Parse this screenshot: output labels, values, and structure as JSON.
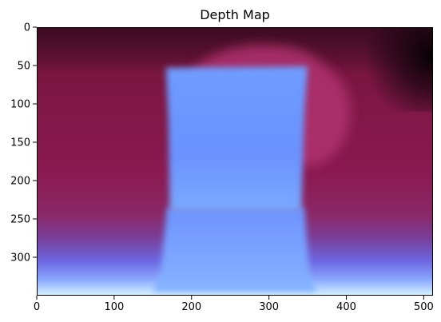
{
  "chart_data": {
    "type": "heatmap",
    "title": "Depth Map",
    "xlabel": "",
    "ylabel": "",
    "xlim": [
      0,
      512
    ],
    "ylim": [
      350,
      0
    ],
    "x_ticks": [
      0,
      100,
      200,
      300,
      400,
      500
    ],
    "y_ticks": [
      0,
      50,
      100,
      150,
      200,
      250,
      300
    ],
    "grid": false,
    "colormap": {
      "far": "#1a0d1a",
      "mid_far": "#7a1848",
      "mid": "#9a2a6a",
      "near": "#7aa6ff",
      "nearest": "#d6f4ff"
    },
    "image_regions": [
      {
        "label": "foreground object (top section)",
        "x": [
          168,
          345
        ],
        "y": [
          50,
          240
        ]
      },
      {
        "label": "foreground object (bottom section)",
        "x": [
          160,
          350
        ],
        "y": [
          240,
          340
        ]
      },
      {
        "label": "rounded shape behind object",
        "x": [
          230,
          420
        ],
        "y": [
          22,
          180
        ]
      },
      {
        "label": "far region",
        "x": [
          420,
          512
        ],
        "y": [
          0,
          80
        ]
      }
    ]
  }
}
